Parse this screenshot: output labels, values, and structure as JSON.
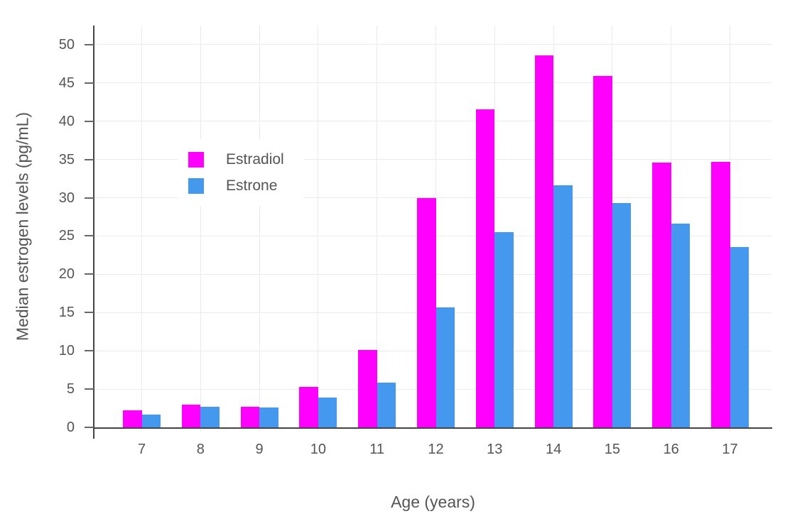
{
  "chart_data": {
    "type": "bar",
    "title": "",
    "xlabel": "Age (years)",
    "ylabel": "Median estrogen levels (pg/mL)",
    "categories": [
      "7",
      "8",
      "9",
      "10",
      "11",
      "12",
      "13",
      "14",
      "15",
      "16",
      "17"
    ],
    "series": [
      {
        "name": "Estradiol",
        "color": "#FF00FF",
        "values": [
          2.2,
          3.0,
          2.7,
          5.3,
          10.1,
          30.0,
          41.6,
          48.6,
          45.9,
          34.6,
          34.7
        ]
      },
      {
        "name": "Estrone",
        "color": "#4499EE",
        "values": [
          1.7,
          2.7,
          2.6,
          3.9,
          5.8,
          15.7,
          25.5,
          31.6,
          29.3,
          26.6,
          23.6
        ]
      }
    ],
    "y_ticks": [
      0,
      5,
      10,
      15,
      20,
      25,
      30,
      35,
      40,
      45,
      50
    ],
    "ylim": [
      0,
      52.5
    ],
    "grid": true,
    "legend_position": "inside-upper-left",
    "style": {
      "grid_color": "#EBEBEB",
      "axis_line_color": "#444444",
      "tick_mark_color": "#666666",
      "text_color": "#555555",
      "background": "#FFFFFF",
      "legend_background": "#FFFFFF"
    }
  }
}
